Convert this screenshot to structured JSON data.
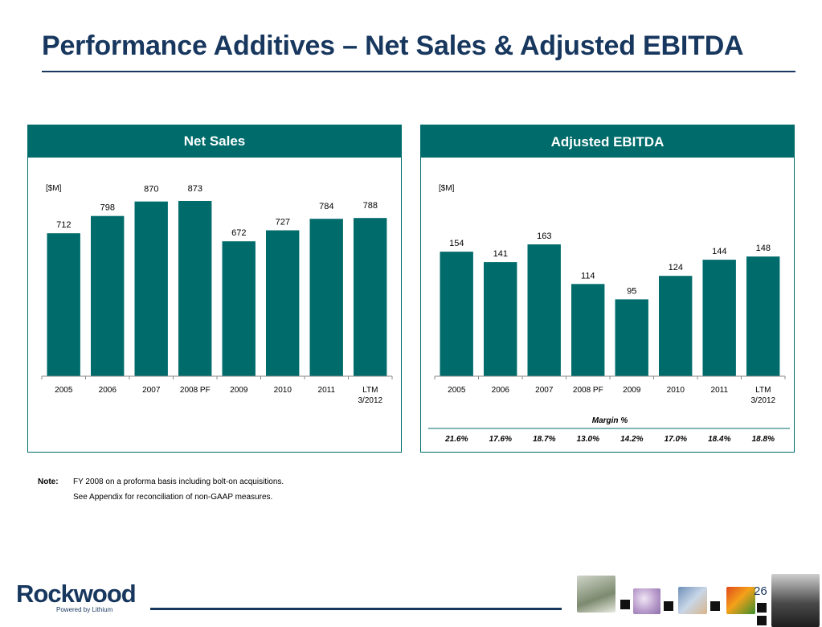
{
  "title": "Performance Additives – Net Sales & Adjusted EBITDA",
  "colors": {
    "title": "#17375e",
    "bar": "#006b6b",
    "panel_header": "#006b6b"
  },
  "panels": {
    "net_sales": {
      "header": "Net Sales"
    },
    "adjusted_ebitda": {
      "header": "Adjusted EBITDA"
    }
  },
  "chart_data": [
    {
      "type": "bar",
      "title": "Net Sales",
      "unit_label": "[$M]",
      "categories": [
        "2005",
        "2006",
        "2007",
        "2008 PF",
        "2009",
        "2010",
        "2011",
        "LTM\n3/2012"
      ],
      "values": [
        712,
        798,
        870,
        873,
        672,
        727,
        784,
        788
      ],
      "ylim": [
        0,
        873
      ],
      "grid": false,
      "legend": "none"
    },
    {
      "type": "bar",
      "title": "Adjusted EBITDA",
      "unit_label": "[$M]",
      "categories": [
        "2005",
        "2006",
        "2007",
        "2008 PF",
        "2009",
        "2010",
        "2011",
        "LTM\n3/2012"
      ],
      "values": [
        154,
        141,
        163,
        114,
        95,
        124,
        144,
        148
      ],
      "ylim": [
        0,
        163
      ],
      "grid": false,
      "legend": "none",
      "table": {
        "label": "Margin %",
        "values": [
          "21.6%",
          "17.6%",
          "18.7%",
          "13.0%",
          "14.2%",
          "17.0%",
          "18.4%",
          "18.8%"
        ]
      }
    }
  ],
  "note": {
    "key": "Note:",
    "lines": [
      "FY 2008 on a proforma basis including bolt-on acquisitions.",
      "See Appendix for reconciliation of non-GAAP measures."
    ]
  },
  "footer": {
    "logo_text": "Rockwood",
    "logo_tagline": "Powered by Lithium",
    "page_number": "26",
    "thumbnails": [
      "lab-flask-image",
      "pills-image",
      "textile-image",
      "pigment-image",
      "car-image"
    ]
  }
}
